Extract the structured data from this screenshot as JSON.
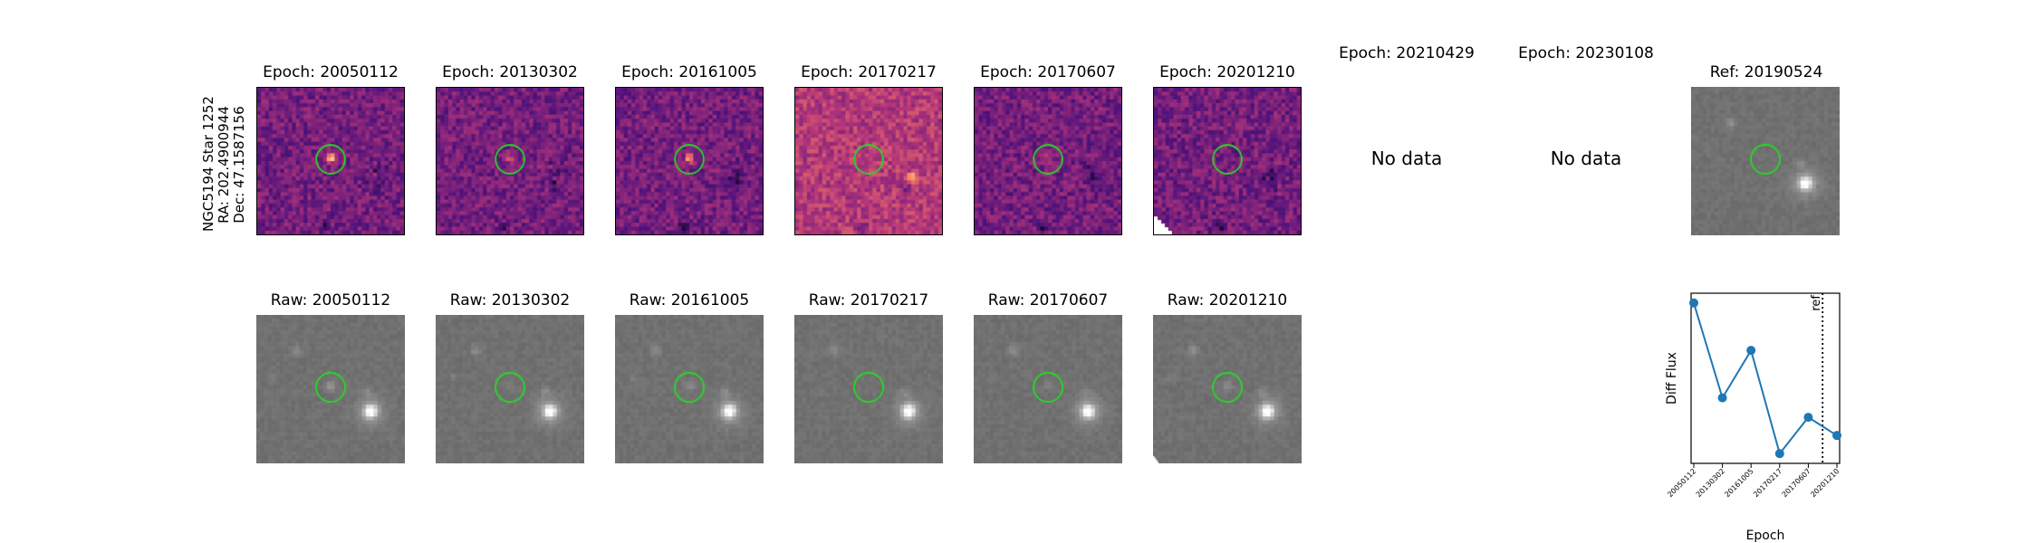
{
  "target": {
    "name": "NGC5194 Star 1252",
    "ra": "RA: 202.4900944",
    "dec": "Dec: 47.1587156"
  },
  "diff_panels": [
    {
      "title": "Epoch: 20050112",
      "has_data": true
    },
    {
      "title": "Epoch: 20130302",
      "has_data": true
    },
    {
      "title": "Epoch: 20161005",
      "has_data": true
    },
    {
      "title": "Epoch: 20170217",
      "has_data": true
    },
    {
      "title": "Epoch: 20170607",
      "has_data": true
    },
    {
      "title": "Epoch: 20201210",
      "has_data": true
    },
    {
      "title": "Epoch: 20210429",
      "has_data": false,
      "message": "No data"
    },
    {
      "title": "Epoch: 20230108",
      "has_data": false,
      "message": "No data"
    }
  ],
  "ref_panel": {
    "title": "Ref: 20190524"
  },
  "raw_panels": [
    {
      "title": "Raw: 20050112"
    },
    {
      "title": "Raw: 20130302"
    },
    {
      "title": "Raw: 20161005"
    },
    {
      "title": "Raw: 20170217"
    },
    {
      "title": "Raw: 20170607"
    },
    {
      "title": "Raw: 20201210"
    }
  ],
  "colors": {
    "aperture": "#22dd22",
    "line": "#1f77b4",
    "diff_colormap": "magma",
    "raw_colormap": "gray"
  },
  "chart_data": {
    "type": "line",
    "xlabel": "Epoch",
    "ylabel": "Diff Flux",
    "categories": [
      "20050112",
      "20130302",
      "20161005",
      "20170217",
      "20170607",
      "20201210"
    ],
    "values": [
      1.0,
      0.32,
      0.66,
      -0.08,
      0.18,
      0.05
    ],
    "ylim": [
      -0.15,
      1.07
    ],
    "yticks_shown": false,
    "reference_line": {
      "position_between": [
        "20170607",
        "20201210"
      ],
      "fraction": 0.5,
      "label": "ref",
      "style": "dotted"
    },
    "marker": "circle"
  }
}
